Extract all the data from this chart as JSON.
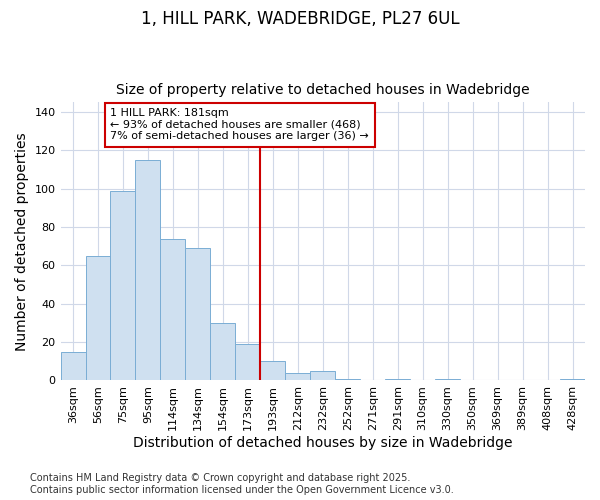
{
  "title_line1": "1, HILL PARK, WADEBRIDGE, PL27 6UL",
  "title_line2": "Size of property relative to detached houses in Wadebridge",
  "xlabel": "Distribution of detached houses by size in Wadebridge",
  "ylabel": "Number of detached properties",
  "categories": [
    "36sqm",
    "56sqm",
    "75sqm",
    "95sqm",
    "114sqm",
    "134sqm",
    "154sqm",
    "173sqm",
    "193sqm",
    "212sqm",
    "232sqm",
    "252sqm",
    "271sqm",
    "291sqm",
    "310sqm",
    "330sqm",
    "350sqm",
    "369sqm",
    "389sqm",
    "408sqm",
    "428sqm"
  ],
  "values": [
    15,
    65,
    99,
    115,
    74,
    69,
    30,
    19,
    10,
    4,
    5,
    1,
    0,
    1,
    0,
    1,
    0,
    0,
    0,
    0,
    1
  ],
  "bar_color": "#cfe0f0",
  "bar_edge_color": "#7aadd4",
  "vline_color": "#cc0000",
  "vline_pos": 7.5,
  "annotation_text": "1 HILL PARK: 181sqm\n← 93% of detached houses are smaller (468)\n7% of semi-detached houses are larger (36) →",
  "annotation_box_edgecolor": "#cc0000",
  "ylim": [
    0,
    145
  ],
  "yticks": [
    0,
    20,
    40,
    60,
    80,
    100,
    120,
    140
  ],
  "background_color": "#ffffff",
  "plot_background_color": "#ffffff",
  "grid_color": "#d0d8e8",
  "title_fontsize": 12,
  "subtitle_fontsize": 10,
  "axis_label_fontsize": 10,
  "tick_fontsize": 8,
  "footer_fontsize": 7,
  "footer_line1": "Contains HM Land Registry data © Crown copyright and database right 2025.",
  "footer_line2": "Contains public sector information licensed under the Open Government Licence v3.0."
}
